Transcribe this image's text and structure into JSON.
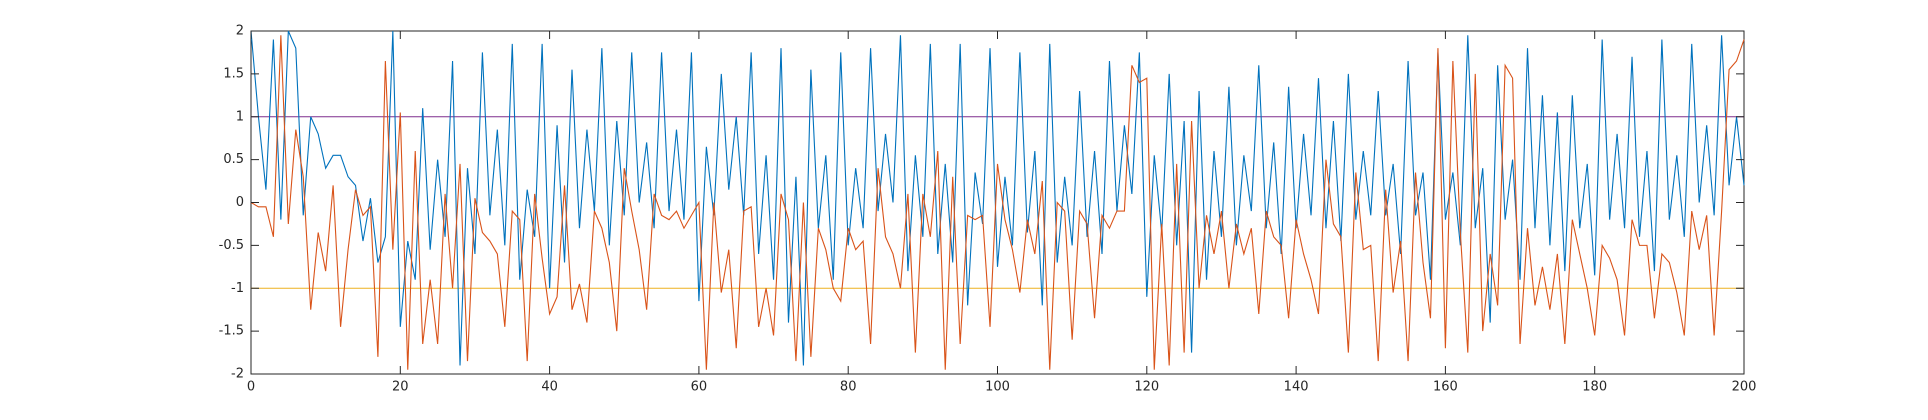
{
  "chart_data": {
    "type": "line",
    "x": [
      0,
      1,
      2,
      3,
      4,
      5,
      6,
      7,
      8,
      9,
      10,
      11,
      12,
      13,
      14,
      15,
      16,
      17,
      18,
      19,
      20,
      21,
      22,
      23,
      24,
      25,
      26,
      27,
      28,
      29,
      30,
      31,
      32,
      33,
      34,
      35,
      36,
      37,
      38,
      39,
      40,
      41,
      42,
      43,
      44,
      45,
      46,
      47,
      48,
      49,
      50,
      51,
      52,
      53,
      54,
      55,
      56,
      57,
      58,
      59,
      60,
      61,
      62,
      63,
      64,
      65,
      66,
      67,
      68,
      69,
      70,
      71,
      72,
      73,
      74,
      75,
      76,
      77,
      78,
      79,
      80,
      81,
      82,
      83,
      84,
      85,
      86,
      87,
      88,
      89,
      90,
      91,
      92,
      93,
      94,
      95,
      96,
      97,
      98,
      99,
      100,
      101,
      102,
      103,
      104,
      105,
      106,
      107,
      108,
      109,
      110,
      111,
      112,
      113,
      114,
      115,
      116,
      117,
      118,
      119,
      120,
      121,
      122,
      123,
      124,
      125,
      126,
      127,
      128,
      129,
      130,
      131,
      132,
      133,
      134,
      135,
      136,
      137,
      138,
      139,
      140,
      141,
      142,
      143,
      144,
      145,
      146,
      147,
      148,
      149,
      150,
      151,
      152,
      153,
      154,
      155,
      156,
      157,
      158,
      159,
      160,
      161,
      162,
      163,
      164,
      165,
      166,
      167,
      168,
      169,
      170,
      171,
      172,
      173,
      174,
      175,
      176,
      177,
      178,
      179,
      180,
      181,
      182,
      183,
      184,
      185,
      186,
      187,
      188,
      189,
      190,
      191,
      192,
      193,
      194,
      195,
      196,
      197,
      198,
      199,
      200
    ],
    "series": [
      {
        "color": "#0072bd",
        "values": [
          2,
          1.0,
          0.15,
          1.9,
          -0.2,
          2.0,
          1.8,
          -0.15,
          1.0,
          0.8,
          0.4,
          0.55,
          0.55,
          0.3,
          0.2,
          -0.45,
          0.05,
          -0.7,
          -0.4,
          2.0,
          -1.45,
          -0.45,
          -0.9,
          1.1,
          -0.55,
          0.5,
          -0.4,
          1.65,
          -1.9,
          0.4,
          -0.6,
          1.75,
          -0.15,
          0.85,
          -0.5,
          1.85,
          -0.9,
          0.15,
          -0.4,
          1.85,
          -1.0,
          0.9,
          -0.7,
          1.55,
          -0.3,
          0.85,
          -0.1,
          1.8,
          -0.5,
          0.95,
          -0.15,
          1.75,
          0.0,
          0.7,
          -0.3,
          1.75,
          -0.1,
          0.85,
          -0.2,
          1.75,
          -1.15,
          0.65,
          -0.15,
          1.5,
          0.15,
          1.0,
          -0.15,
          1.75,
          -0.6,
          0.55,
          -0.9,
          1.8,
          -1.4,
          0.3,
          -1.9,
          1.55,
          -0.3,
          0.55,
          -0.9,
          1.75,
          -0.5,
          0.4,
          -0.3,
          1.8,
          -0.1,
          0.8,
          0.0,
          1.95,
          -0.8,
          0.55,
          -0.4,
          1.85,
          -0.6,
          0.45,
          -0.7,
          1.85,
          -1.2,
          0.35,
          -0.25,
          1.8,
          -0.75,
          0.3,
          -0.5,
          1.75,
          -0.35,
          0.6,
          -1.2,
          1.85,
          -0.7,
          0.3,
          -0.5,
          1.3,
          -0.4,
          0.6,
          -0.6,
          1.65,
          -0.1,
          0.9,
          0.1,
          1.75,
          -1.1,
          0.55,
          -0.35,
          1.5,
          -0.5,
          0.95,
          -1.75,
          1.3,
          -0.9,
          0.6,
          -0.4,
          1.35,
          -0.5,
          0.55,
          -0.1,
          1.6,
          -0.3,
          0.7,
          -0.6,
          1.35,
          -0.3,
          0.8,
          -0.15,
          1.45,
          -0.3,
          0.95,
          -0.45,
          1.5,
          -0.2,
          0.6,
          -0.15,
          1.3,
          -0.15,
          0.45,
          -0.6,
          1.65,
          -0.15,
          0.35,
          -0.9,
          1.75,
          -0.2,
          0.35,
          -0.5,
          1.95,
          -0.3,
          0.4,
          -1.4,
          1.6,
          -0.2,
          0.5,
          -0.9,
          1.8,
          -0.3,
          1.25,
          -0.5,
          1.05,
          -0.8,
          1.25,
          -0.3,
          0.45,
          -0.85,
          1.9,
          -0.2,
          0.8,
          -0.3,
          1.7,
          -0.4,
          0.6,
          -0.8,
          1.9,
          -0.2,
          0.55,
          -0.4,
          1.85,
          0.0,
          0.9,
          -0.15,
          1.95,
          0.2,
          1.0,
          0.2
        ]
      },
      {
        "color": "#d95319",
        "values": [
          0,
          -0.05,
          -0.05,
          -0.4,
          1.95,
          -0.25,
          0.85,
          0.3,
          -1.25,
          -0.35,
          -0.8,
          0.2,
          -1.45,
          -0.55,
          0.15,
          -0.15,
          -0.05,
          -1.8,
          1.65,
          -0.55,
          1.05,
          -1.95,
          0.6,
          -1.65,
          -0.9,
          -1.65,
          0.1,
          -1.0,
          0.45,
          -1.85,
          0.05,
          -0.35,
          -0.45,
          -0.6,
          -1.45,
          -0.1,
          -0.2,
          -1.85,
          0.1,
          -0.65,
          -1.3,
          -1.1,
          0.2,
          -1.25,
          -0.95,
          -1.4,
          -0.1,
          -0.3,
          -0.7,
          -1.5,
          0.4,
          -0.1,
          -0.55,
          -1.25,
          0.1,
          -0.15,
          -0.2,
          -0.1,
          -0.3,
          -0.15,
          0.0,
          -1.95,
          0.0,
          -1.05,
          -0.55,
          -1.7,
          -0.1,
          -0.05,
          -1.45,
          -1.0,
          -1.55,
          0.1,
          -0.2,
          -1.85,
          0.0,
          -1.8,
          -0.3,
          -0.55,
          -1.0,
          -1.15,
          -0.3,
          -0.55,
          -0.45,
          -1.65,
          0.4,
          -0.4,
          -0.6,
          -1.0,
          0.1,
          -1.75,
          0.1,
          -0.4,
          0.6,
          -1.95,
          0.3,
          -1.65,
          -0.15,
          -0.2,
          -0.15,
          -1.45,
          0.45,
          -0.2,
          -0.55,
          -1.05,
          -0.2,
          -0.6,
          0.25,
          -1.95,
          0.0,
          -0.1,
          -1.6,
          -0.1,
          -0.25,
          -1.35,
          -0.15,
          -0.3,
          -0.1,
          -0.1,
          1.6,
          1.4,
          1.45,
          -1.95,
          -0.25,
          -1.9,
          0.45,
          -1.75,
          0.95,
          -1.0,
          -0.15,
          -0.6,
          -0.1,
          -1.0,
          -0.25,
          -0.6,
          -0.3,
          -1.3,
          -0.1,
          -0.4,
          -0.5,
          -1.35,
          -0.2,
          -0.6,
          -0.9,
          -1.3,
          0.5,
          -0.25,
          -0.4,
          -1.75,
          0.35,
          -0.55,
          -0.5,
          -1.85,
          0.15,
          -1.05,
          -0.45,
          -1.85,
          0.35,
          -0.7,
          -1.35,
          1.8,
          -1.7,
          1.65,
          -0.35,
          -1.75,
          1.5,
          -1.5,
          -0.6,
          -1.2,
          1.6,
          1.45,
          -1.65,
          -0.3,
          -1.2,
          -0.75,
          -1.25,
          -0.6,
          -1.65,
          -0.2,
          -0.6,
          -1.0,
          -1.55,
          -0.5,
          -0.65,
          -0.9,
          -1.55,
          -0.2,
          -0.5,
          -0.5,
          -1.35,
          -0.6,
          -0.7,
          -1.05,
          -1.55,
          -0.1,
          -0.55,
          -0.15,
          -1.55,
          -0.1,
          1.55,
          1.65,
          1.9
        ]
      }
    ],
    "hlines": [
      {
        "value": 1,
        "color": "#7e2f8e"
      },
      {
        "value": -1,
        "color": "#edb120"
      }
    ],
    "xlim": [
      0,
      200
    ],
    "xticks": [
      0,
      20,
      40,
      60,
      80,
      100,
      120,
      140,
      160,
      180,
      200
    ],
    "ylim": [
      -2,
      2
    ],
    "yticks": [
      -2,
      -1.5,
      -1,
      -0.5,
      0,
      0.5,
      1,
      1.5,
      2
    ]
  }
}
